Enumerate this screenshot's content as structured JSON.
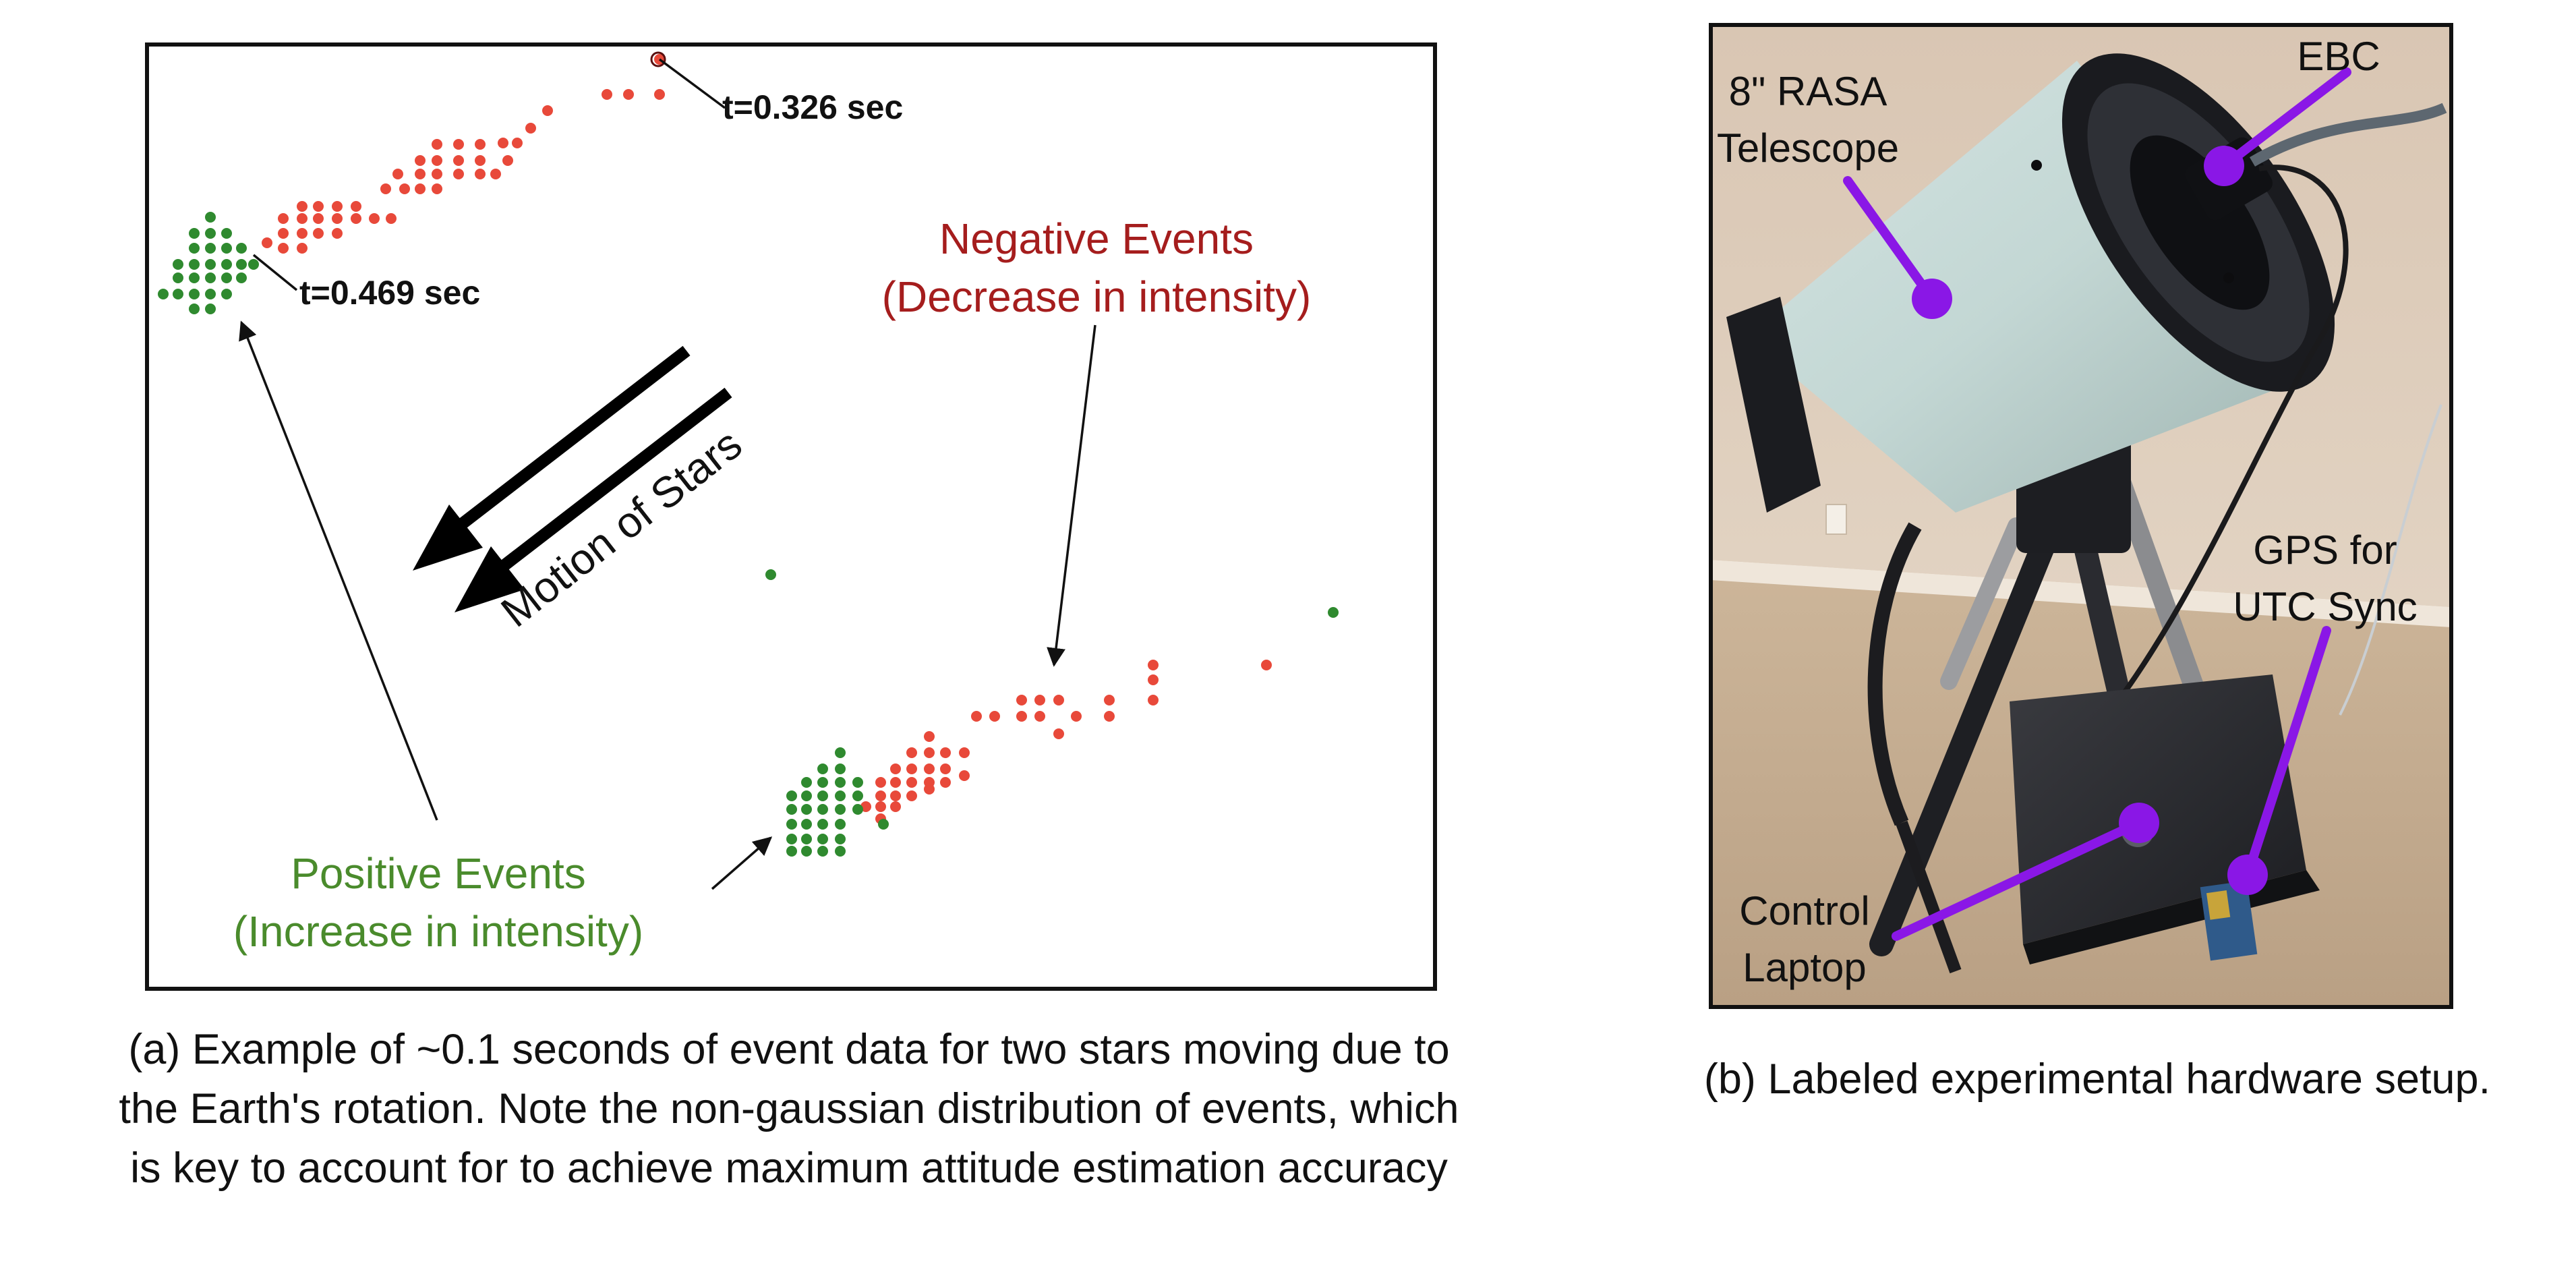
{
  "colors": {
    "positive": "#2f8a2f",
    "negative": "#e8493a",
    "negative_label": "#a51d1d",
    "positive_label": "#4a8b2c",
    "callout": "#8a17e6",
    "frame": "#111111"
  },
  "panel_a": {
    "label_t_end": "t=0.326 sec",
    "label_t_start": "t=0.469 sec",
    "negative_title": "Negative Events",
    "negative_sub": "(Decrease in intensity)",
    "positive_title": "Positive Events",
    "positive_sub": "(Increase in intensity)",
    "motion_label": "Motion of Stars",
    "caption_lines": [
      "(a) Example of ~0.1 seconds of event data for two stars moving due to",
      "the Earth's rotation. Note the non-gaussian distribution of events, which",
      "is key to account for to achieve maximum attitude estimation accuracy"
    ]
  },
  "panel_b": {
    "telescope_label_1": "8\" RASA",
    "telescope_label_2": "Telescope",
    "ebc_label": "EBC",
    "gps_label_1": "GPS for",
    "gps_label_2": "UTC Sync",
    "laptop_label_1": "Control",
    "laptop_label_2": "Laptop",
    "caption": "(b) Labeled experimental hardware setup."
  }
}
